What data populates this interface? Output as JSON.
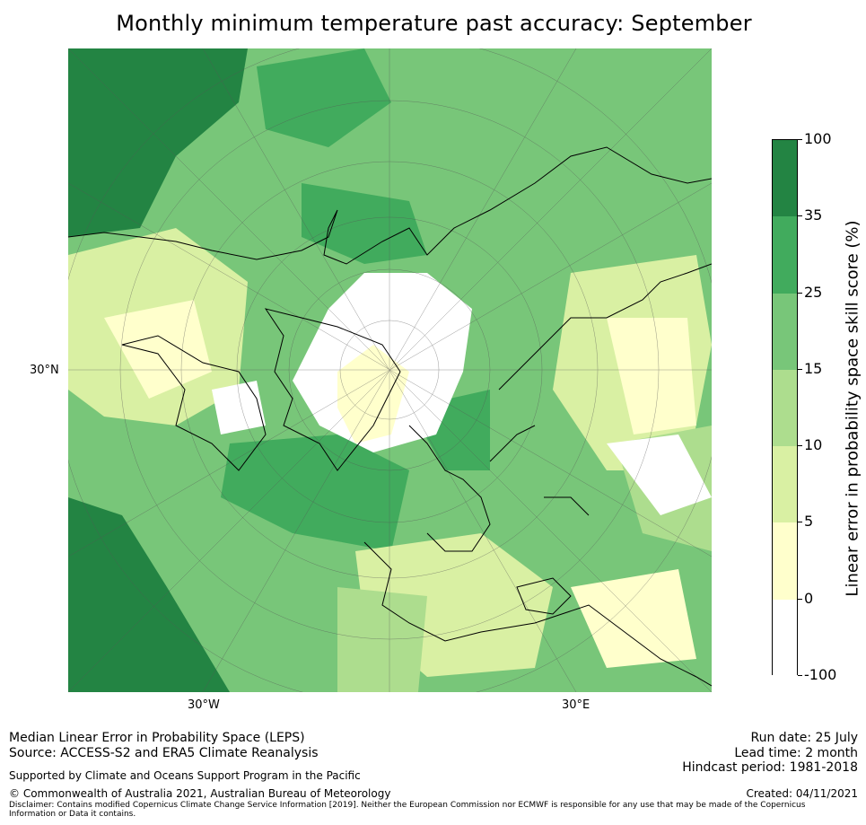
{
  "title": "Monthly minimum temperature past accuracy: September",
  "map": {
    "projection": "north-polar-stereographic",
    "lat_labels": [
      "30°N"
    ],
    "lon_labels": [
      "30°W",
      "30°E"
    ]
  },
  "colorbar": {
    "label": "Linear error in probability space skill score (%)",
    "ticks": [
      "100",
      "35",
      "25",
      "15",
      "10",
      "5",
      "0",
      "-100"
    ],
    "bins": [
      {
        "from": "35",
        "to": "100",
        "color": "#238443"
      },
      {
        "from": "25",
        "to": "35",
        "color": "#41ab5d"
      },
      {
        "from": "15",
        "to": "25",
        "color": "#78c679"
      },
      {
        "from": "10",
        "to": "15",
        "color": "#addd8e"
      },
      {
        "from": "5",
        "to": "10",
        "color": "#d9f0a3"
      },
      {
        "from": "0",
        "to": "5",
        "color": "#ffffcc"
      },
      {
        "from": "-100",
        "to": "0",
        "color": "#ffffff"
      }
    ]
  },
  "footer": {
    "line1": "Median Linear Error in Probability Space (LEPS)",
    "line2": "Source: ACCESS-S2 and ERA5 Climate Reanalysis",
    "support": "Supported by Climate and Oceans Support Program in the Pacific",
    "copyright": "© Commonwealth of Australia 2021, Australian Bureau of Meteorology",
    "disclaimer": "Disclaimer: Contains modified Copernicus Climate Change Service Information [2019]. Neither the European Commission nor ECMWF is responsible for any use that may be made of the Copernicus Information or Data it contains.",
    "run_date": "Run date: 25 July",
    "lead_time": "Lead time: 2 month",
    "hindcast": "Hindcast period: 1981-2018",
    "created": "Created: 04/11/2021"
  }
}
